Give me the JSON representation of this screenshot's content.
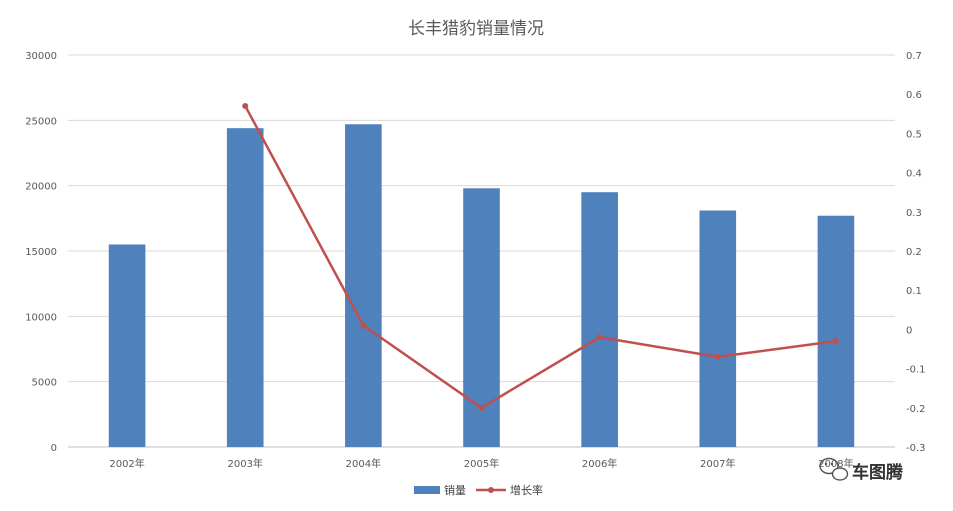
{
  "chart_data": {
    "type": "bar",
    "title": "长丰猎豹销量情况",
    "categories": [
      "2002年",
      "2003年",
      "2004年",
      "2005年",
      "2006年",
      "2007年",
      "2008年"
    ],
    "series": [
      {
        "name": "销量",
        "type": "bar",
        "axis": "left",
        "color": "#4F81BD",
        "values": [
          15500,
          24400,
          24700,
          19800,
          19500,
          18100,
          17700
        ]
      },
      {
        "name": "增长率",
        "type": "line",
        "axis": "right",
        "color": "#C0504D",
        "values": [
          null,
          0.57,
          0.01,
          -0.2,
          -0.02,
          -0.07,
          -0.03
        ]
      }
    ],
    "y_left": {
      "min": 0,
      "max": 30000,
      "step": 5000,
      "ticks": [
        "0",
        "5000",
        "10000",
        "15000",
        "20000",
        "25000",
        "30000"
      ]
    },
    "y_right": {
      "min": -0.3,
      "max": 0.7,
      "step": 0.1,
      "ticks": [
        "-0.3",
        "-0.2",
        "-0.1",
        "0",
        "0.1",
        "0.2",
        "0.3",
        "0.4",
        "0.5",
        "0.6",
        "0.7"
      ]
    },
    "grid": true,
    "legend": "bottom"
  },
  "watermark": {
    "text": "车图腾",
    "icon": "wechat-icon"
  }
}
